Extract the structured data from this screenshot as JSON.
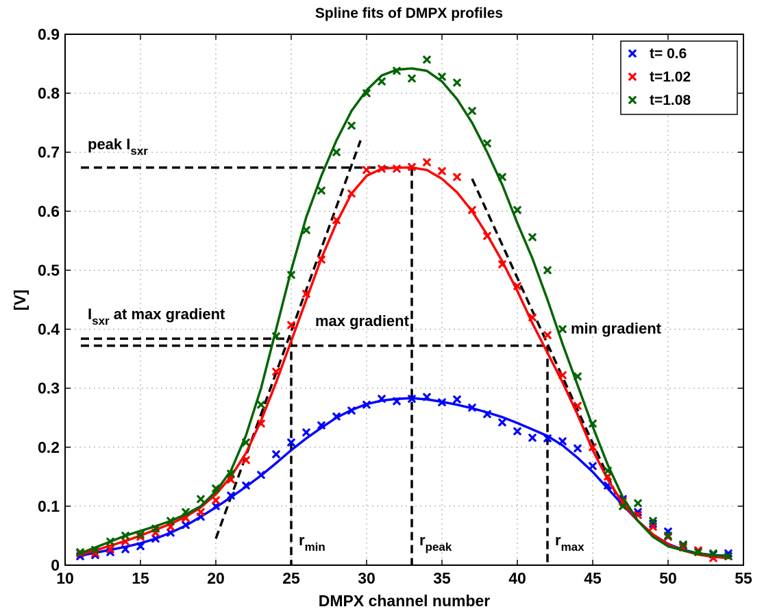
{
  "chart_data": {
    "type": "line",
    "title": "Spline fits of DMPX profiles",
    "xlabel": "DMPX channel number",
    "ylabel": "[V]",
    "xlim": [
      10,
      55
    ],
    "ylim": [
      0,
      0.9
    ],
    "xticks": [
      10,
      15,
      20,
      25,
      30,
      35,
      40,
      45,
      50,
      55
    ],
    "yticks": [
      0,
      0.1,
      0.2,
      0.3,
      0.4,
      0.5,
      0.6,
      0.7,
      0.8,
      0.9
    ],
    "grid": true,
    "legend_position": "top-right",
    "series": [
      {
        "name": "t= 0.6",
        "color": "#0000ff",
        "x": [
          11,
          12,
          13,
          14,
          15,
          16,
          17,
          18,
          19,
          20,
          21,
          22,
          23,
          24,
          25,
          26,
          27,
          28,
          29,
          30,
          31,
          32,
          33,
          34,
          35,
          36,
          37,
          38,
          39,
          40,
          41,
          42,
          43,
          44,
          45,
          46,
          47,
          48,
          49,
          50,
          51,
          52,
          53,
          54
        ],
        "y": [
          0.015,
          0.017,
          0.022,
          0.027,
          0.032,
          0.045,
          0.055,
          0.068,
          0.082,
          0.1,
          0.118,
          0.135,
          0.153,
          0.188,
          0.208,
          0.225,
          0.237,
          0.252,
          0.262,
          0.272,
          0.282,
          0.278,
          0.282,
          0.285,
          0.276,
          0.281,
          0.267,
          0.256,
          0.242,
          0.227,
          0.216,
          0.215,
          0.21,
          0.198,
          0.168,
          0.135,
          0.112,
          0.09,
          0.07,
          0.057,
          0.033,
          0.025,
          0.018,
          0.02
        ],
        "fit_y": [
          0.016,
          0.021,
          0.026,
          0.031,
          0.037,
          0.045,
          0.055,
          0.067,
          0.082,
          0.098,
          0.115,
          0.133,
          0.152,
          0.173,
          0.195,
          0.215,
          0.233,
          0.25,
          0.263,
          0.273,
          0.279,
          0.282,
          0.283,
          0.281,
          0.277,
          0.272,
          0.266,
          0.259,
          0.251,
          0.241,
          0.23,
          0.219,
          0.203,
          0.182,
          0.158,
          0.13,
          0.102,
          0.075,
          0.052,
          0.036,
          0.026,
          0.02,
          0.017,
          0.016
        ]
      },
      {
        "name": "t=1.02",
        "color": "#ff0000",
        "x": [
          11,
          12,
          13,
          14,
          15,
          16,
          17,
          18,
          19,
          20,
          21,
          22,
          23,
          24,
          25,
          26,
          27,
          28,
          29,
          30,
          31,
          32,
          33,
          34,
          35,
          36,
          37,
          38,
          39,
          40,
          41,
          42,
          43,
          44,
          45,
          46,
          47,
          48,
          49,
          50,
          51,
          52,
          53,
          54
        ],
        "y": [
          0.02,
          0.02,
          0.027,
          0.04,
          0.048,
          0.055,
          0.065,
          0.08,
          0.09,
          0.11,
          0.145,
          0.178,
          0.24,
          0.328,
          0.407,
          0.46,
          0.518,
          0.585,
          0.63,
          0.67,
          0.672,
          0.672,
          0.675,
          0.683,
          0.668,
          0.658,
          0.602,
          0.558,
          0.51,
          0.473,
          0.42,
          0.39,
          0.322,
          0.27,
          0.2,
          0.15,
          0.108,
          0.085,
          0.065,
          0.048,
          0.03,
          0.025,
          0.012,
          0.015
        ],
        "fit_y": [
          0.018,
          0.025,
          0.033,
          0.041,
          0.05,
          0.06,
          0.07,
          0.082,
          0.098,
          0.12,
          0.15,
          0.19,
          0.245,
          0.31,
          0.38,
          0.45,
          0.52,
          0.58,
          0.63,
          0.66,
          0.672,
          0.674,
          0.674,
          0.67,
          0.655,
          0.632,
          0.6,
          0.56,
          0.515,
          0.465,
          0.41,
          0.36,
          0.31,
          0.255,
          0.195,
          0.145,
          0.105,
          0.075,
          0.052,
          0.035,
          0.025,
          0.018,
          0.014,
          0.012
        ]
      },
      {
        "name": "t=1.08",
        "color": "#006400",
        "x": [
          11,
          12,
          13,
          14,
          15,
          16,
          17,
          18,
          19,
          20,
          21,
          22,
          23,
          24,
          25,
          26,
          27,
          28,
          29,
          30,
          31,
          32,
          33,
          34,
          35,
          36,
          37,
          38,
          39,
          40,
          41,
          42,
          43,
          44,
          45,
          46,
          47,
          48,
          49,
          50,
          51,
          52,
          53,
          54
        ],
        "y": [
          0.022,
          0.026,
          0.04,
          0.05,
          0.052,
          0.062,
          0.075,
          0.09,
          0.112,
          0.13,
          0.155,
          0.208,
          0.272,
          0.388,
          0.492,
          0.568,
          0.635,
          0.7,
          0.745,
          0.8,
          0.82,
          0.838,
          0.825,
          0.857,
          0.828,
          0.818,
          0.77,
          0.715,
          0.658,
          0.602,
          0.556,
          0.5,
          0.4,
          0.32,
          0.24,
          0.16,
          0.1,
          0.105,
          0.075,
          0.05,
          0.035,
          0.022,
          0.02,
          0.015
        ],
        "fit_y": [
          0.02,
          0.03,
          0.04,
          0.05,
          0.058,
          0.066,
          0.075,
          0.086,
          0.1,
          0.125,
          0.16,
          0.22,
          0.3,
          0.4,
          0.5,
          0.59,
          0.66,
          0.72,
          0.77,
          0.805,
          0.83,
          0.84,
          0.842,
          0.838,
          0.82,
          0.79,
          0.75,
          0.7,
          0.645,
          0.58,
          0.52,
          0.45,
          0.375,
          0.305,
          0.235,
          0.17,
          0.115,
          0.075,
          0.048,
          0.032,
          0.025,
          0.02,
          0.017,
          0.015
        ]
      }
    ],
    "annotations": {
      "peak_label": "peak I",
      "peak_label_sub": "sxr",
      "grad_label": "I",
      "grad_label_sub": "sxr",
      "grad_label_rest": " at max gradient",
      "max_gradient": "max gradient",
      "min_gradient": "min gradient",
      "r_min": "r",
      "r_min_sub": "min",
      "r_peak": "r",
      "r_peak_sub": "peak",
      "r_max": "r",
      "r_max_sub": "max"
    },
    "reference_lines": {
      "peak_value": 0.674,
      "max_grad_value_upper": 0.384,
      "max_grad_value_lower": 0.372,
      "r_min": 25,
      "r_peak": 33,
      "r_max": 42,
      "tangent_max": {
        "x": [
          20,
          29.6
        ],
        "y": [
          0.045,
          0.72
        ]
      },
      "tangent_min": {
        "x": [
          37,
          47
        ],
        "y": [
          0.655,
          0.095
        ]
      }
    }
  }
}
